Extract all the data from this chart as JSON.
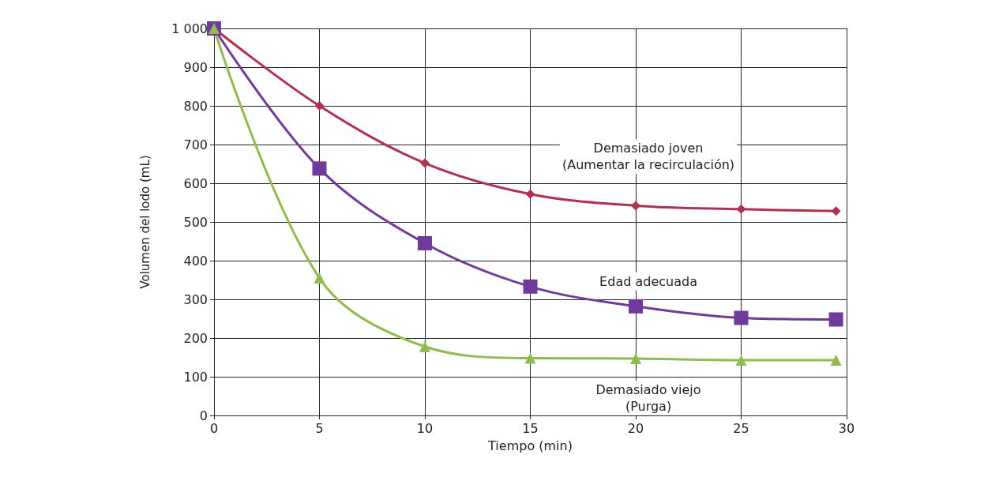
{
  "chart_data": {
    "type": "line",
    "xlabel": "Tiempo (min)",
    "ylabel": "Volumen del lodo (mL)",
    "xlim": [
      0,
      30
    ],
    "xticks": [
      0,
      5,
      10,
      15,
      20,
      25,
      30
    ],
    "ylim": [
      0,
      1000
    ],
    "yticks": [
      0,
      100,
      200,
      300,
      400,
      500,
      600,
      700,
      800,
      900,
      {
        "value": 1000,
        "label": "1 000"
      }
    ],
    "grid": true,
    "series": [
      {
        "color": "#b0304f",
        "marker": "diamond",
        "x": [
          0,
          5,
          10,
          15,
          20,
          25,
          29.5
        ],
        "values": [
          1000,
          800,
          652,
          572,
          542,
          533,
          528
        ]
      },
      {
        "color": "#6f3a9a",
        "marker": "square",
        "x": [
          0,
          5,
          10,
          15,
          20,
          25,
          29.5
        ],
        "values": [
          1000,
          638,
          445,
          333,
          282,
          252,
          248
        ]
      },
      {
        "color": "#92bb4f",
        "marker": "triangle",
        "x": [
          0,
          5,
          10,
          15,
          20,
          25,
          29.5
        ],
        "values": [
          1000,
          355,
          178,
          148,
          147,
          143,
          143
        ]
      }
    ],
    "annotations": [
      "Demasiado joven\n(Aumentar la recirculación)",
      "Edad adecuada",
      "Demasiado viejo\n(Purga)"
    ]
  }
}
